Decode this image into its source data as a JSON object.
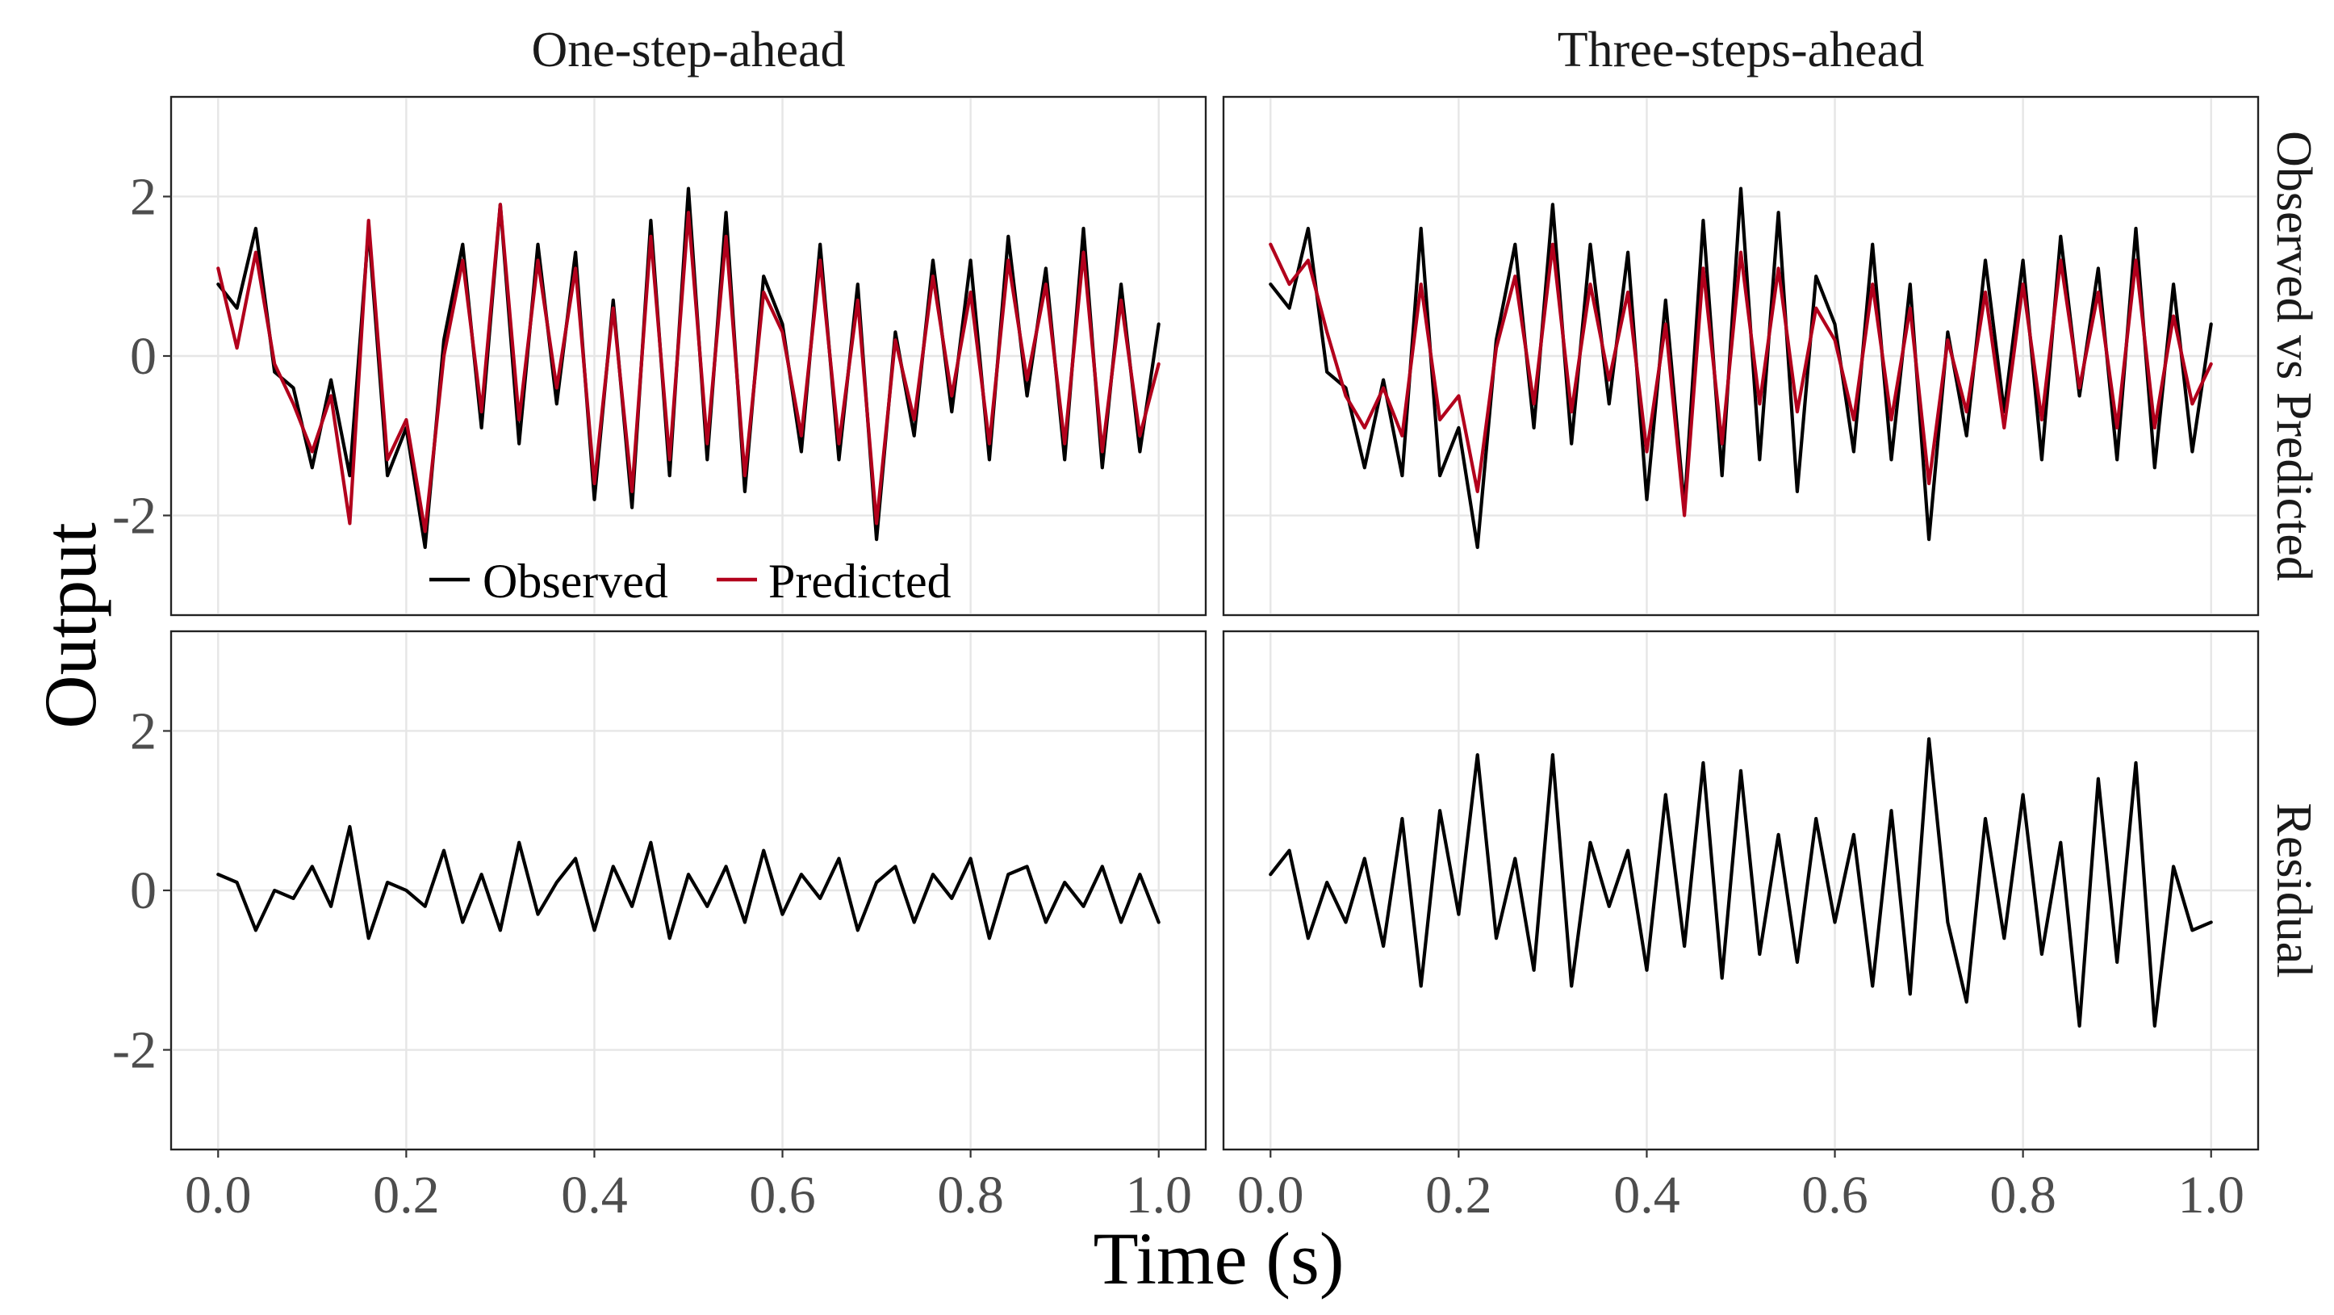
{
  "chart_data": {
    "type": "line",
    "facets": {
      "columns": [
        "One-step-ahead",
        "Three-steps-ahead"
      ],
      "rows": [
        "Observed vs Predicted",
        "Residual"
      ]
    },
    "xlabel": "Time (s)",
    "ylabel": "Output",
    "xlim": [
      -0.05,
      1.05
    ],
    "ylim": [
      -3.25,
      3.25
    ],
    "x_ticks": [
      "0.0",
      "0.2",
      "0.4",
      "0.6",
      "0.8",
      "1.0"
    ],
    "y_ticks": [
      "-2",
      "0",
      "2"
    ],
    "grid": true,
    "legend": {
      "position": "inside bottom of top-left panel",
      "entries": [
        {
          "label": "Observed",
          "color": "#000000"
        },
        {
          "label": "Predicted",
          "color": "#b2001c"
        }
      ]
    },
    "colors": {
      "observed": "#000000",
      "predicted": "#b2001c",
      "residual": "#000000"
    },
    "x": [
      0.0,
      0.02,
      0.04,
      0.06,
      0.08,
      0.1,
      0.12,
      0.14,
      0.16,
      0.18,
      0.2,
      0.22,
      0.24,
      0.26,
      0.28,
      0.3,
      0.32,
      0.34,
      0.36,
      0.38,
      0.4,
      0.42,
      0.44,
      0.46,
      0.48,
      0.5,
      0.52,
      0.54,
      0.56,
      0.58,
      0.6,
      0.62,
      0.64,
      0.66,
      0.68,
      0.7,
      0.72,
      0.74,
      0.76,
      0.78,
      0.8,
      0.82,
      0.84,
      0.86,
      0.88,
      0.9,
      0.92,
      0.94,
      0.96,
      0.98,
      1.0
    ],
    "panels": [
      {
        "column": "One-step-ahead",
        "row": "Observed vs Predicted",
        "series": [
          {
            "name": "Observed",
            "values": [
              0.9,
              0.6,
              1.6,
              -0.2,
              -0.4,
              -1.4,
              -0.3,
              -1.5,
              1.6,
              -1.5,
              -0.9,
              -2.4,
              0.2,
              1.4,
              -0.9,
              1.9,
              -1.1,
              1.4,
              -0.6,
              1.3,
              -1.8,
              0.7,
              -1.9,
              1.7,
              -1.5,
              2.1,
              -1.3,
              1.8,
              -1.7,
              1.0,
              0.4,
              -1.2,
              1.4,
              -1.3,
              0.9,
              -2.3,
              0.3,
              -1.0,
              1.2,
              -0.7,
              1.2,
              -1.3,
              1.5,
              -0.5,
              1.1,
              -1.3,
              1.6,
              -1.4,
              0.9,
              -1.2,
              0.4
            ]
          },
          {
            "name": "Predicted",
            "values": [
              1.1,
              0.1,
              1.3,
              -0.1,
              -0.6,
              -1.2,
              -0.5,
              -2.1,
              1.7,
              -1.3,
              -0.8,
              -2.2,
              0.0,
              1.2,
              -0.7,
              1.9,
              -0.8,
              1.2,
              -0.4,
              1.1,
              -1.6,
              0.6,
              -1.7,
              1.5,
              -1.3,
              1.8,
              -1.1,
              1.5,
              -1.5,
              0.8,
              0.3,
              -1.0,
              1.2,
              -1.1,
              0.7,
              -2.1,
              0.2,
              -0.8,
              1.0,
              -0.5,
              0.8,
              -1.1,
              1.2,
              -0.3,
              0.9,
              -1.1,
              1.3,
              -1.2,
              0.7,
              -1.0,
              -0.1
            ]
          }
        ]
      },
      {
        "column": "Three-steps-ahead",
        "row": "Observed vs Predicted",
        "series": [
          {
            "name": "Observed",
            "values": [
              0.9,
              0.6,
              1.6,
              -0.2,
              -0.4,
              -1.4,
              -0.3,
              -1.5,
              1.6,
              -1.5,
              -0.9,
              -2.4,
              0.2,
              1.4,
              -0.9,
              1.9,
              -1.1,
              1.4,
              -0.6,
              1.3,
              -1.8,
              0.7,
              -1.9,
              1.7,
              -1.5,
              2.1,
              -1.3,
              1.8,
              -1.7,
              1.0,
              0.4,
              -1.2,
              1.4,
              -1.3,
              0.9,
              -2.3,
              0.3,
              -1.0,
              1.2,
              -0.7,
              1.2,
              -1.3,
              1.5,
              -0.5,
              1.1,
              -1.3,
              1.6,
              -1.4,
              0.9,
              -1.2,
              0.4
            ]
          },
          {
            "name": "Predicted",
            "values": [
              1.4,
              0.9,
              1.2,
              0.3,
              -0.5,
              -0.9,
              -0.4,
              -1.0,
              0.9,
              -0.8,
              -0.5,
              -1.7,
              0.1,
              1.0,
              -0.6,
              1.4,
              -0.7,
              0.9,
              -0.3,
              0.8,
              -1.2,
              0.4,
              -2.0,
              1.1,
              -1.1,
              1.3,
              -0.6,
              1.1,
              -0.7,
              0.6,
              0.2,
              -0.8,
              0.9,
              -0.8,
              0.6,
              -1.6,
              0.2,
              -0.7,
              0.8,
              -0.9,
              0.9,
              -0.8,
              1.2,
              -0.4,
              0.8,
              -0.9,
              1.2,
              -0.9,
              0.5,
              -0.6,
              -0.1
            ]
          }
        ]
      },
      {
        "column": "One-step-ahead",
        "row": "Residual",
        "series": [
          {
            "name": "Residual",
            "values": [
              0.2,
              0.1,
              -0.5,
              0.0,
              -0.1,
              0.3,
              -0.2,
              0.8,
              -0.6,
              0.1,
              0.0,
              -0.2,
              0.5,
              -0.4,
              0.2,
              -0.5,
              0.6,
              -0.3,
              0.1,
              0.4,
              -0.5,
              0.3,
              -0.2,
              0.6,
              -0.6,
              0.2,
              -0.2,
              0.3,
              -0.4,
              0.5,
              -0.3,
              0.2,
              -0.1,
              0.4,
              -0.5,
              0.1,
              0.3,
              -0.4,
              0.2,
              -0.1,
              0.4,
              -0.6,
              0.2,
              0.3,
              -0.4,
              0.1,
              -0.2,
              0.3,
              -0.4,
              0.2,
              -0.4
            ]
          }
        ]
      },
      {
        "column": "Three-steps-ahead",
        "row": "Residual",
        "series": [
          {
            "name": "Residual",
            "values": [
              0.2,
              0.5,
              -0.6,
              0.1,
              -0.4,
              0.4,
              -0.7,
              0.9,
              -1.2,
              1.0,
              -0.3,
              1.7,
              -0.6,
              0.4,
              -1.0,
              1.7,
              -1.2,
              0.6,
              -0.2,
              0.5,
              -1.0,
              1.2,
              -0.7,
              1.6,
              -1.1,
              1.5,
              -0.8,
              0.7,
              -0.9,
              0.9,
              -0.4,
              0.7,
              -1.2,
              1.0,
              -1.3,
              1.9,
              -0.4,
              -1.4,
              0.9,
              -0.6,
              1.2,
              -0.8,
              0.6,
              -1.7,
              1.4,
              -0.9,
              1.6,
              -1.7,
              0.3,
              -0.5,
              -0.4
            ]
          }
        ]
      }
    ]
  }
}
